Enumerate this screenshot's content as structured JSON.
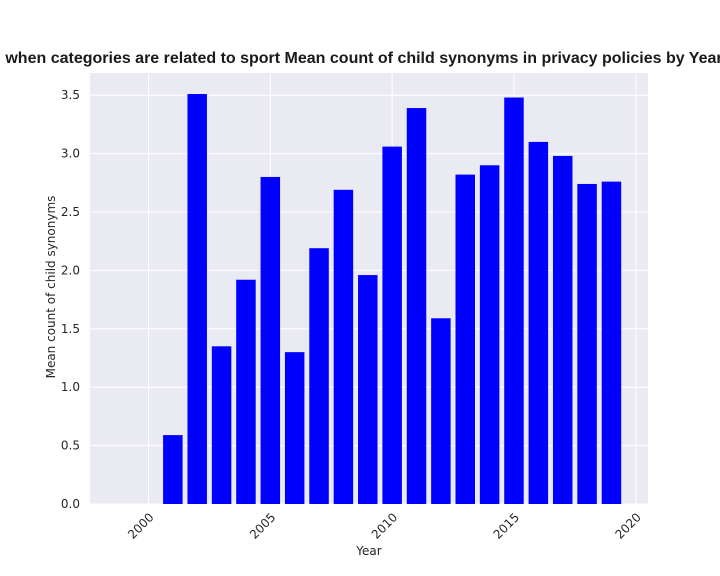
{
  "chart_data": {
    "type": "bar",
    "title": "when categories are related to sport Mean count of child synonyms in privacy policies by Year",
    "xlabel": "Year",
    "ylabel": "Mean count of child synonyms",
    "x": [
      2001,
      2002,
      2003,
      2004,
      2005,
      2006,
      2007,
      2008,
      2009,
      2010,
      2011,
      2012,
      2013,
      2014,
      2015,
      2016,
      2017,
      2018,
      2019
    ],
    "values": [
      0.59,
      3.51,
      1.35,
      1.92,
      2.8,
      1.3,
      2.19,
      2.69,
      1.96,
      3.06,
      3.39,
      1.59,
      2.82,
      2.9,
      3.48,
      3.1,
      2.98,
      2.74,
      2.76
    ],
    "xlim": [
      1997.6,
      2020.5
    ],
    "ylim": [
      0,
      3.69
    ],
    "xticks": [
      2000,
      2005,
      2010,
      2015,
      2020
    ],
    "yticks": [
      0.0,
      0.5,
      1.0,
      1.5,
      2.0,
      2.5,
      3.0,
      3.5
    ],
    "xtick_labels": [
      "2000",
      "2005",
      "2010",
      "2015",
      "2020"
    ],
    "ytick_labels": [
      "0.0",
      "0.5",
      "1.0",
      "1.5",
      "2.0",
      "2.5",
      "3.0",
      "3.5"
    ],
    "bar_color": "#0000ff",
    "background_color": "#eaeaf2",
    "grid": true
  }
}
